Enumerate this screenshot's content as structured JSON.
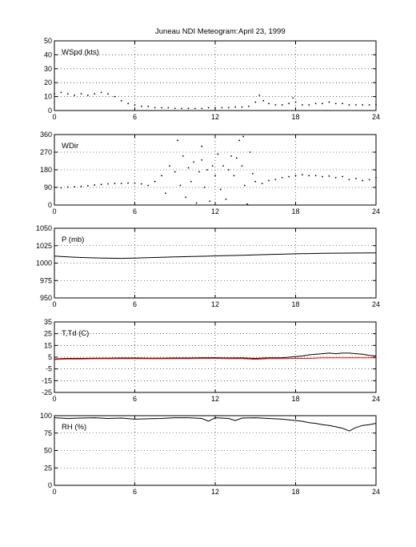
{
  "title": "Juneau NDI Meteogram:",
  "date": "April 23, 1999",
  "chart_data": [
    {
      "type": "scatter",
      "label": "WSpd (kts)",
      "xlim": [
        0,
        24
      ],
      "ylim": [
        0,
        50
      ],
      "xticks": [
        0,
        6,
        12,
        18,
        24
      ],
      "yticks": [
        0,
        10,
        20,
        30,
        40,
        50
      ],
      "grid": true,
      "series": [
        {
          "color": "#000000",
          "style": "dots",
          "points": [
            [
              0,
              12
            ],
            [
              0.5,
              13
            ],
            [
              1,
              12
            ],
            [
              1.5,
              11
            ],
            [
              2,
              12
            ],
            [
              2.5,
              11
            ],
            [
              3,
              12
            ],
            [
              3.5,
              13
            ],
            [
              4,
              12
            ],
            [
              4.5,
              10
            ],
            [
              5,
              7
            ],
            [
              5.5,
              5
            ],
            [
              6,
              4
            ],
            [
              6.5,
              3
            ],
            [
              7,
              3
            ],
            [
              7.5,
              2
            ],
            [
              8,
              2
            ],
            [
              8.5,
              2
            ],
            [
              9,
              1.5
            ],
            [
              9.5,
              1.5
            ],
            [
              10,
              1.5
            ],
            [
              10.5,
              1.5
            ],
            [
              11,
              1.5
            ],
            [
              11.5,
              2
            ],
            [
              12,
              2
            ],
            [
              12.5,
              2
            ],
            [
              13,
              2
            ],
            [
              13.5,
              2.5
            ],
            [
              14,
              2.5
            ],
            [
              14.5,
              3
            ],
            [
              15,
              6
            ],
            [
              15.3,
              11
            ],
            [
              15.6,
              7
            ],
            [
              16,
              5
            ],
            [
              16.5,
              4
            ],
            [
              17,
              4
            ],
            [
              17.5,
              5
            ],
            [
              17.8,
              9
            ],
            [
              18,
              6
            ],
            [
              18.5,
              4
            ],
            [
              19,
              4
            ],
            [
              19.5,
              5
            ],
            [
              20,
              5
            ],
            [
              20.5,
              6
            ],
            [
              21,
              5
            ],
            [
              21.5,
              5
            ],
            [
              22,
              4
            ],
            [
              22.5,
              4
            ],
            [
              23,
              4
            ],
            [
              23.5,
              4
            ],
            [
              24,
              4
            ]
          ]
        }
      ]
    },
    {
      "type": "scatter",
      "label": "WDir",
      "xlim": [
        0,
        24
      ],
      "ylim": [
        0,
        360
      ],
      "xticks": [
        0,
        6,
        12,
        18,
        24
      ],
      "yticks": [
        0,
        90,
        180,
        270,
        360
      ],
      "grid": true,
      "series": [
        {
          "color": "#000000",
          "style": "dots",
          "points": [
            [
              0,
              90
            ],
            [
              0.5,
              88
            ],
            [
              1,
              92
            ],
            [
              1.5,
              93
            ],
            [
              2,
              95
            ],
            [
              2.5,
              98
            ],
            [
              3,
              102
            ],
            [
              3.5,
              105
            ],
            [
              4,
              108
            ],
            [
              4.5,
              110
            ],
            [
              5,
              110
            ],
            [
              5.5,
              112
            ],
            [
              6,
              112
            ],
            [
              6.5,
              108
            ],
            [
              7,
              100
            ],
            [
              7.5,
              120
            ],
            [
              8,
              150
            ],
            [
              8.3,
              60
            ],
            [
              8.6,
              200
            ],
            [
              9,
              170
            ],
            [
              9.2,
              330
            ],
            [
              9.4,
              100
            ],
            [
              9.6,
              250
            ],
            [
              9.8,
              40
            ],
            [
              10,
              190
            ],
            [
              10.2,
              120
            ],
            [
              10.4,
              220
            ],
            [
              10.6,
              10
            ],
            [
              10.8,
              170
            ],
            [
              11,
              300
            ],
            [
              11,
              230
            ],
            [
              11.2,
              90
            ],
            [
              11.4,
              180
            ],
            [
              11.6,
              20
            ],
            [
              11.8,
              200
            ],
            [
              12,
              150
            ],
            [
              12.2,
              260
            ],
            [
              12.4,
              80
            ],
            [
              12.6,
              200
            ],
            [
              12.8,
              30
            ],
            [
              13,
              180
            ],
            [
              13.2,
              250
            ],
            [
              13.4,
              150
            ],
            [
              13.6,
              240
            ],
            [
              13.8,
              330
            ],
            [
              14,
              200
            ],
            [
              14.1,
              350
            ],
            [
              14.2,
              100
            ],
            [
              14.4,
              5
            ],
            [
              14.6,
              270
            ],
            [
              14.8,
              160
            ],
            [
              15,
              120
            ],
            [
              15.5,
              110
            ],
            [
              16,
              125
            ],
            [
              16.5,
              130
            ],
            [
              17,
              140
            ],
            [
              17.5,
              145
            ],
            [
              18,
              150
            ],
            [
              18.5,
              155
            ],
            [
              19,
              150
            ],
            [
              19.5,
              150
            ],
            [
              20,
              145
            ],
            [
              20.5,
              148
            ],
            [
              21,
              140
            ],
            [
              21.5,
              145
            ],
            [
              22,
              130
            ],
            [
              22.5,
              135
            ],
            [
              23,
              125
            ],
            [
              23.5,
              130
            ],
            [
              24,
              140
            ]
          ]
        }
      ]
    },
    {
      "type": "line",
      "label": "P (mb)",
      "xlim": [
        0,
        24
      ],
      "ylim": [
        950,
        1050
      ],
      "xticks": [
        0,
        6,
        12,
        18,
        24
      ],
      "yticks": [
        950,
        975,
        1000,
        1025,
        1050
      ],
      "grid": true,
      "series": [
        {
          "color": "#000000",
          "style": "line",
          "points": [
            [
              0,
              1010
            ],
            [
              1,
              1009
            ],
            [
              2,
              1008
            ],
            [
              3,
              1007.5
            ],
            [
              4,
              1007
            ],
            [
              5,
              1006.8
            ],
            [
              6,
              1007.2
            ],
            [
              7,
              1007.8
            ],
            [
              8,
              1008.3
            ],
            [
              9,
              1008.8
            ],
            [
              10,
              1009.3
            ],
            [
              11,
              1009.8
            ],
            [
              12,
              1010.3
            ],
            [
              13,
              1010.8
            ],
            [
              14,
              1011.3
            ],
            [
              15,
              1011.8
            ],
            [
              16,
              1012.3
            ],
            [
              17,
              1012.8
            ],
            [
              18,
              1013.3
            ],
            [
              19,
              1013.7
            ],
            [
              20,
              1014
            ],
            [
              21,
              1014.2
            ],
            [
              22,
              1014.4
            ],
            [
              23,
              1014.5
            ],
            [
              24,
              1014.6
            ]
          ]
        }
      ]
    },
    {
      "type": "line",
      "label": "T,Td (C)",
      "xlim": [
        0,
        24
      ],
      "ylim": [
        -25,
        35
      ],
      "xticks": [
        0,
        6,
        12,
        18,
        24
      ],
      "yticks": [
        -25,
        -15,
        -5,
        5,
        15,
        25,
        35
      ],
      "grid": true,
      "series": [
        {
          "color": "#000000",
          "style": "line",
          "points": [
            [
              0,
              3.5
            ],
            [
              1,
              4
            ],
            [
              2,
              4
            ],
            [
              3,
              4.2
            ],
            [
              4,
              4.2
            ],
            [
              5,
              4.3
            ],
            [
              6,
              4.3
            ],
            [
              7,
              4.2
            ],
            [
              8,
              4.2
            ],
            [
              9,
              4.3
            ],
            [
              10,
              4.3
            ],
            [
              11,
              4.5
            ],
            [
              12,
              4.5
            ],
            [
              13,
              4.3
            ],
            [
              14,
              4.4
            ],
            [
              15,
              4
            ],
            [
              16,
              4.5
            ],
            [
              17,
              4.5
            ],
            [
              17.5,
              5
            ],
            [
              18,
              5.5
            ],
            [
              18.5,
              6
            ],
            [
              19,
              7
            ],
            [
              19.5,
              7.5
            ],
            [
              20,
              8
            ],
            [
              20.5,
              8.5
            ],
            [
              21,
              8
            ],
            [
              21.5,
              8.5
            ],
            [
              22,
              8.5
            ],
            [
              22.5,
              8
            ],
            [
              23,
              7.5
            ],
            [
              23.5,
              6.5
            ],
            [
              24,
              6
            ]
          ]
        },
        {
          "color": "#ff0000",
          "style": "line",
          "points": [
            [
              0,
              3
            ],
            [
              1,
              3.5
            ],
            [
              2,
              3.5
            ],
            [
              3,
              3.7
            ],
            [
              4,
              3.7
            ],
            [
              5,
              3.8
            ],
            [
              6,
              3.8
            ],
            [
              7,
              3.7
            ],
            [
              8,
              3.7
            ],
            [
              9,
              3.8
            ],
            [
              10,
              3.8
            ],
            [
              11,
              4
            ],
            [
              12,
              4
            ],
            [
              13,
              3.8
            ],
            [
              14,
              3.8
            ],
            [
              15,
              3.2
            ],
            [
              16,
              3.8
            ],
            [
              17,
              3.8
            ],
            [
              18,
              4
            ],
            [
              19,
              4
            ],
            [
              20,
              4.5
            ],
            [
              21,
              4.5
            ],
            [
              22,
              4.5
            ],
            [
              23,
              4.5
            ],
            [
              24,
              4.5
            ]
          ]
        }
      ]
    },
    {
      "type": "line",
      "label": "RH (%)",
      "xlim": [
        0,
        24
      ],
      "ylim": [
        0,
        100
      ],
      "xticks": [
        0,
        6,
        12,
        18,
        24
      ],
      "yticks": [
        0,
        25,
        50,
        75,
        100
      ],
      "grid": true,
      "series": [
        {
          "color": "#000000",
          "style": "line",
          "points": [
            [
              0,
              97
            ],
            [
              1,
              96
            ],
            [
              2,
              96.5
            ],
            [
              3,
              97
            ],
            [
              4,
              96
            ],
            [
              5,
              96.5
            ],
            [
              6,
              95
            ],
            [
              7,
              95.5
            ],
            [
              8,
              96
            ],
            [
              9,
              97
            ],
            [
              10,
              97
            ],
            [
              11,
              96
            ],
            [
              11.5,
              92
            ],
            [
              12,
              97
            ],
            [
              13,
              96
            ],
            [
              13.5,
              93
            ],
            [
              14,
              96.5
            ],
            [
              15,
              97
            ],
            [
              16,
              96
            ],
            [
              17,
              95
            ],
            [
              18,
              93
            ],
            [
              18.5,
              92
            ],
            [
              19,
              90
            ],
            [
              19.5,
              89
            ],
            [
              20,
              87
            ],
            [
              20.5,
              86
            ],
            [
              21,
              84
            ],
            [
              21.5,
              82
            ],
            [
              22,
              78
            ],
            [
              22.5,
              83
            ],
            [
              23,
              86
            ],
            [
              23.5,
              87
            ],
            [
              24,
              89
            ]
          ]
        }
      ]
    }
  ]
}
